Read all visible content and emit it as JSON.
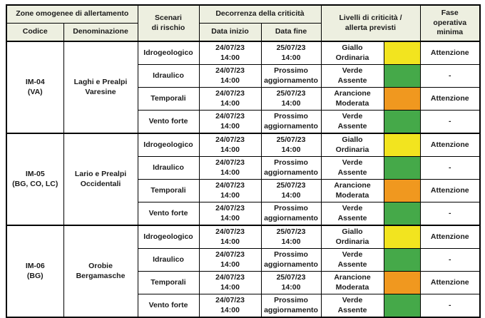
{
  "table": {
    "headers": {
      "zone": "Zone omogenee di allertamento",
      "codice": "Codice",
      "denominazione": "Denominazione",
      "scenari": "Scenari\ndi rischio",
      "decorrenza": "Decorrenza della criticità",
      "data_inizio": "Data inizio",
      "data_fine": "Data fine",
      "livelli": "Livelli di criticità /\nallerta previsti",
      "fase": "Fase\noperativa\nminima"
    },
    "level_colors": {
      "giallo": "#f2e41f",
      "verde": "#45a949",
      "arancione": "#f0981f"
    },
    "header_bg": "#edefe0",
    "groups": [
      {
        "codice": "IM-04\n(VA)",
        "denominazione": "Laghi e Prealpi\nVaresine",
        "rows": [
          {
            "scenario": "Idrogeologico",
            "inizio": "24/07/23\n14:00",
            "fine": "25/07/23\n14:00",
            "livello": "Giallo\nOrdinaria",
            "colore": "giallo",
            "fase": "Attenzione"
          },
          {
            "scenario": "Idraulico",
            "inizio": "24/07/23\n14:00",
            "fine": "Prossimo\naggiornamento",
            "livello": "Verde\nAssente",
            "colore": "verde",
            "fase": "-"
          },
          {
            "scenario": "Temporali",
            "inizio": "24/07/23\n14:00",
            "fine": "25/07/23\n14:00",
            "livello": "Arancione\nModerata",
            "colore": "arancione",
            "fase": "Attenzione"
          },
          {
            "scenario": "Vento forte",
            "inizio": "24/07/23\n14:00",
            "fine": "Prossimo\naggiornamento",
            "livello": "Verde\nAssente",
            "colore": "verde",
            "fase": "-"
          }
        ]
      },
      {
        "codice": "IM-05\n(BG, CO, LC)",
        "denominazione": "Lario e Prealpi\nOccidentali",
        "rows": [
          {
            "scenario": "Idrogeologico",
            "inizio": "24/07/23\n14:00",
            "fine": "25/07/23\n14:00",
            "livello": "Giallo\nOrdinaria",
            "colore": "giallo",
            "fase": "Attenzione"
          },
          {
            "scenario": "Idraulico",
            "inizio": "24/07/23\n14:00",
            "fine": "Prossimo\naggiornamento",
            "livello": "Verde\nAssente",
            "colore": "verde",
            "fase": "-"
          },
          {
            "scenario": "Temporali",
            "inizio": "24/07/23\n14:00",
            "fine": "25/07/23\n14:00",
            "livello": "Arancione\nModerata",
            "colore": "arancione",
            "fase": "Attenzione"
          },
          {
            "scenario": "Vento forte",
            "inizio": "24/07/23\n14:00",
            "fine": "Prossimo\naggiornamento",
            "livello": "Verde\nAssente",
            "colore": "verde",
            "fase": "-"
          }
        ]
      },
      {
        "codice": "IM-06\n(BG)",
        "denominazione": "Orobie\nBergamasche",
        "rows": [
          {
            "scenario": "Idrogeologico",
            "inizio": "24/07/23\n14:00",
            "fine": "25/07/23\n14:00",
            "livello": "Giallo\nOrdinaria",
            "colore": "giallo",
            "fase": "Attenzione"
          },
          {
            "scenario": "Idraulico",
            "inizio": "24/07/23\n14:00",
            "fine": "Prossimo\naggiornamento",
            "livello": "Verde\nAssente",
            "colore": "verde",
            "fase": "-"
          },
          {
            "scenario": "Temporali",
            "inizio": "24/07/23\n14:00",
            "fine": "25/07/23\n14:00",
            "livello": "Arancione\nModerata",
            "colore": "arancione",
            "fase": "Attenzione"
          },
          {
            "scenario": "Vento forte",
            "inizio": "24/07/23\n14:00",
            "fine": "Prossimo\naggiornamento",
            "livello": "Verde\nAssente",
            "colore": "verde",
            "fase": "-"
          }
        ]
      }
    ]
  }
}
